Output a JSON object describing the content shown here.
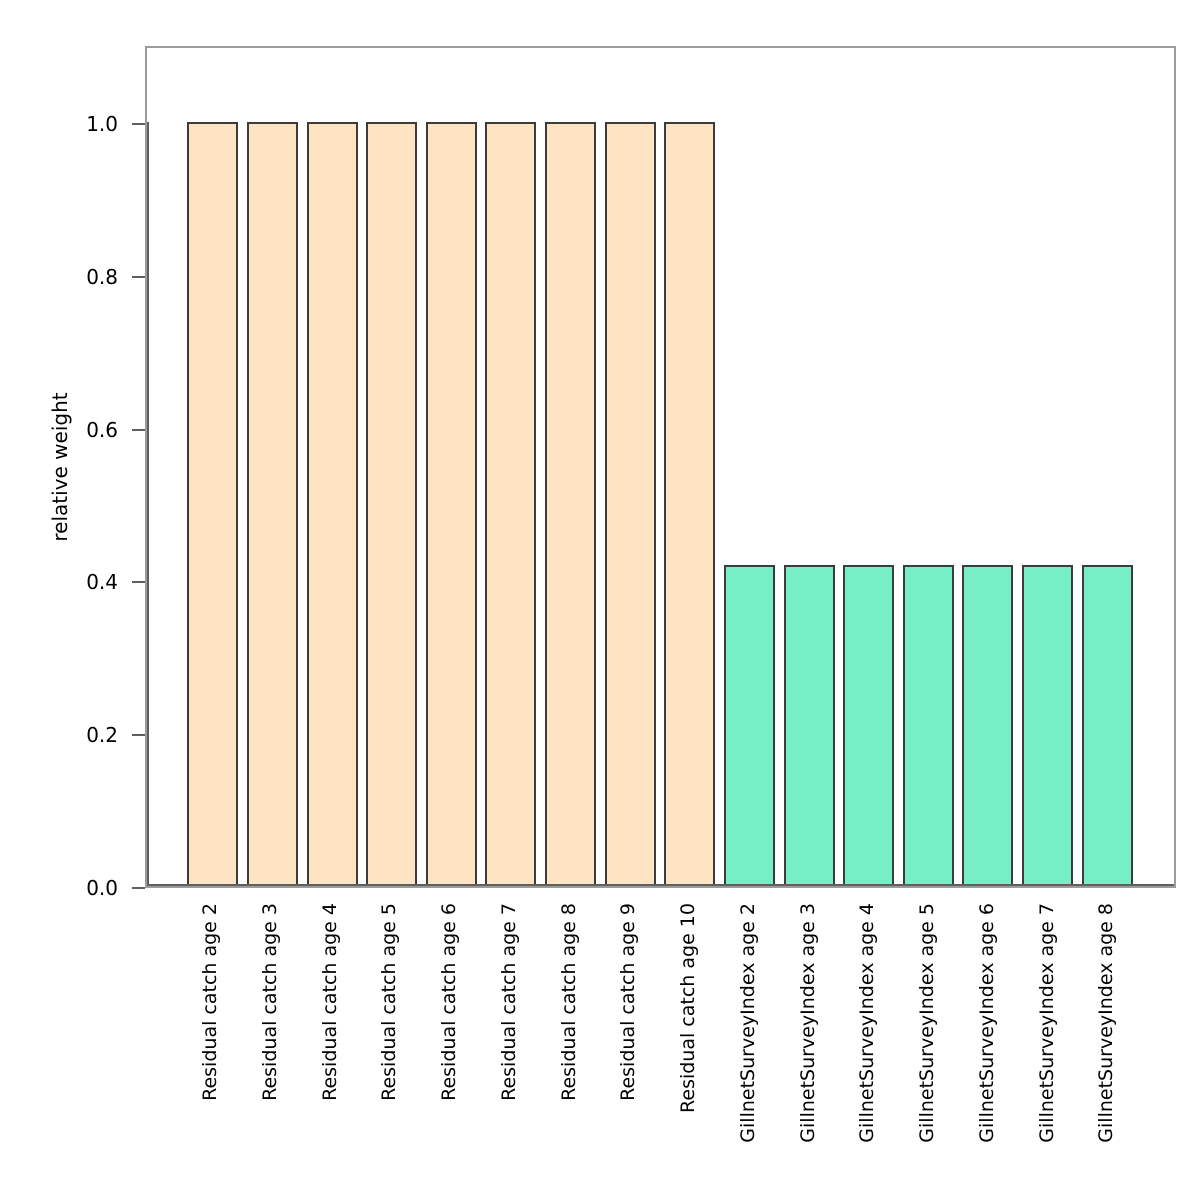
{
  "chart_data": {
    "type": "bar",
    "title": "",
    "xlabel": "",
    "ylabel": "relative weight",
    "ylim": [
      0,
      1.1
    ],
    "yticks": [
      "0.0",
      "0.2",
      "0.4",
      "0.6",
      "0.8",
      "1.0"
    ],
    "grid": false,
    "legend": false,
    "categories": [
      "Residual catch age 2",
      "Residual catch age 3",
      "Residual catch age 4",
      "Residual catch age 5",
      "Residual catch age 6",
      "Residual catch age 7",
      "Residual catch age 8",
      "Residual catch age 9",
      "Residual catch age 10",
      "GillnetSurveyIndex age 2",
      "GillnetSurveyIndex age 3",
      "GillnetSurveyIndex age 4",
      "GillnetSurveyIndex age 5",
      "GillnetSurveyIndex age 6",
      "GillnetSurveyIndex age 7",
      "GillnetSurveyIndex age 8"
    ],
    "values": [
      1.0,
      1.0,
      1.0,
      1.0,
      1.0,
      1.0,
      1.0,
      1.0,
      1.0,
      0.42,
      0.42,
      0.42,
      0.42,
      0.42,
      0.42,
      0.42
    ],
    "bar_colors": [
      "#FFE4C4",
      "#FFE4C4",
      "#FFE4C4",
      "#FFE4C4",
      "#FFE4C4",
      "#FFE4C4",
      "#FFE4C4",
      "#FFE4C4",
      "#FFE4C4",
      "#76EEC6",
      "#76EEC6",
      "#76EEC6",
      "#76EEC6",
      "#76EEC6",
      "#76EEC6",
      "#76EEC6"
    ]
  },
  "style": {
    "background": "#ffffff",
    "residual_catch_fill": "#FFE4C4",
    "gillnet_survey_fill": "#76EEC6",
    "bar_border": "#3c3c3c",
    "plot_box_border": "#9c9c9c",
    "axis_line": "#5f5f5f",
    "text_color": "#000000"
  }
}
